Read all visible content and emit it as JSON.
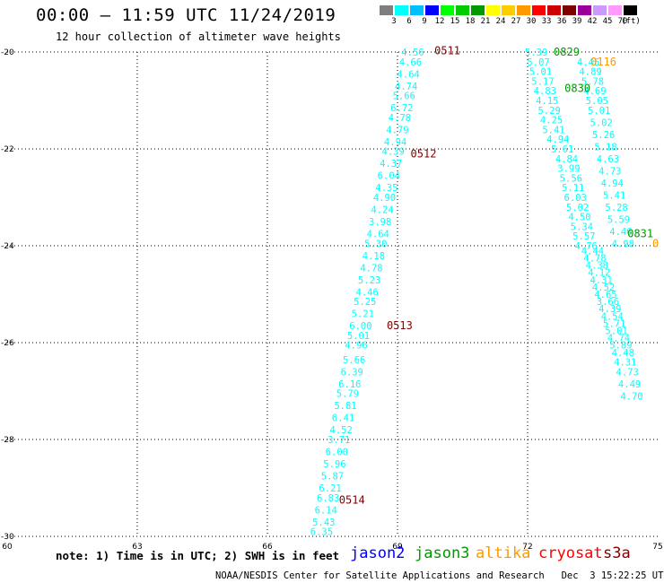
{
  "header": {
    "title": "00:00 – 11:59 UTC 11/24/2019",
    "subtitle": "12 hour collection of altimeter wave heights"
  },
  "color_scale": {
    "bins": [
      {
        "label": "3",
        "color": "#7f7f7f"
      },
      {
        "label": "6",
        "color": "#00ffff"
      },
      {
        "label": "9",
        "color": "#00bfff"
      },
      {
        "label": "12",
        "color": "#0000ff"
      },
      {
        "label": "15",
        "color": "#00ff00"
      },
      {
        "label": "18",
        "color": "#00cc00"
      },
      {
        "label": "21",
        "color": "#009900"
      },
      {
        "label": "24",
        "color": "#ffff00"
      },
      {
        "label": "27",
        "color": "#ffcc00"
      },
      {
        "label": "30",
        "color": "#ff9900"
      },
      {
        "label": "33",
        "color": "#ff0000"
      },
      {
        "label": "36",
        "color": "#cc0000"
      },
      {
        "label": "39",
        "color": "#800000"
      },
      {
        "label": "42",
        "color": "#990099"
      },
      {
        "label": "45",
        "color": "#cc99ff"
      },
      {
        "label": "70",
        "color": "#ff99ff"
      },
      {
        "label": "",
        "color": "#000000"
      }
    ],
    "unit": "(ft)"
  },
  "footer": {
    "note": "note: 1) Time is in UTC; 2) SWH is in feet",
    "satellites": [
      {
        "label": "jason2",
        "color": "#0000ff"
      },
      {
        "label": "jason3",
        "color": "#009900"
      },
      {
        "label": "altika",
        "color": "#ff9900"
      },
      {
        "label": "cryosat",
        "color": "#ff0000"
      },
      {
        "label": "s3a",
        "color": "#800000"
      }
    ],
    "credit": "NOAA/NESDIS Center for Satellite Applications and Research   Dec  3 15:22:25 UTC 2019"
  },
  "chart_data": {
    "type": "scatter",
    "xlim": [
      60,
      75
    ],
    "ylim": [
      -30,
      -20
    ],
    "x_ticks": [
      "60",
      "63",
      "66",
      "69",
      "72",
      "75"
    ],
    "y_ticks": [
      "-20",
      "-22",
      "-24",
      "-26",
      "-28",
      "-30"
    ],
    "grid": true,
    "track_a": {
      "color": "#00ffff",
      "points": [
        {
          "lon": 69.35,
          "lat": -20.0,
          "v": "4.56"
        },
        {
          "lon": 69.3,
          "lat": -20.2,
          "v": "4.66"
        },
        {
          "lon": 69.25,
          "lat": -20.45,
          "v": "4.64"
        },
        {
          "lon": 69.2,
          "lat": -20.7,
          "v": "4.74"
        },
        {
          "lon": 69.15,
          "lat": -20.9,
          "v": "5.66"
        },
        {
          "lon": 69.1,
          "lat": -21.15,
          "v": "6.72"
        },
        {
          "lon": 69.05,
          "lat": -21.35,
          "v": "4.78"
        },
        {
          "lon": 69.0,
          "lat": -21.6,
          "v": "4.79"
        },
        {
          "lon": 68.95,
          "lat": -21.85,
          "v": "4.94"
        },
        {
          "lon": 68.9,
          "lat": -22.05,
          "v": "4.39"
        },
        {
          "lon": 68.85,
          "lat": -22.3,
          "v": "4.37"
        },
        {
          "lon": 68.8,
          "lat": -22.55,
          "v": "6.04"
        },
        {
          "lon": 68.75,
          "lat": -22.8,
          "v": "4.35"
        },
        {
          "lon": 68.7,
          "lat": -23.0,
          "v": "4.90"
        },
        {
          "lon": 68.65,
          "lat": -23.25,
          "v": "4.24"
        },
        {
          "lon": 68.6,
          "lat": -23.5,
          "v": "3.98"
        },
        {
          "lon": 68.55,
          "lat": -23.75,
          "v": "4.64"
        },
        {
          "lon": 68.5,
          "lat": -23.95,
          "v": "5.30"
        },
        {
          "lon": 68.45,
          "lat": -24.2,
          "v": "4.18"
        },
        {
          "lon": 68.4,
          "lat": -24.45,
          "v": "4.78"
        },
        {
          "lon": 68.35,
          "lat": -24.7,
          "v": "5.23"
        },
        {
          "lon": 68.3,
          "lat": -24.95,
          "v": "4.46"
        },
        {
          "lon": 68.25,
          "lat": -25.15,
          "v": "5.25"
        },
        {
          "lon": 68.2,
          "lat": -25.4,
          "v": "5.21"
        },
        {
          "lon": 68.15,
          "lat": -25.65,
          "v": "6.00"
        },
        {
          "lon": 68.1,
          "lat": -25.85,
          "v": "5.01"
        },
        {
          "lon": 68.05,
          "lat": -26.05,
          "v": "4.96"
        },
        {
          "lon": 68.0,
          "lat": -26.35,
          "v": "5.66"
        },
        {
          "lon": 67.95,
          "lat": -26.6,
          "v": "6.39"
        },
        {
          "lon": 67.9,
          "lat": -26.85,
          "v": "6.16"
        },
        {
          "lon": 67.85,
          "lat": -27.05,
          "v": "5.79"
        },
        {
          "lon": 67.8,
          "lat": -27.3,
          "v": "5.81"
        },
        {
          "lon": 67.75,
          "lat": -27.55,
          "v": "6.41"
        },
        {
          "lon": 67.7,
          "lat": -27.8,
          "v": "4.52"
        },
        {
          "lon": 67.65,
          "lat": -28.0,
          "v": "3.71"
        },
        {
          "lon": 67.6,
          "lat": -28.25,
          "v": "6.00"
        },
        {
          "lon": 67.55,
          "lat": -28.5,
          "v": "5.96"
        },
        {
          "lon": 67.5,
          "lat": -28.75,
          "v": "5.87"
        },
        {
          "lon": 67.45,
          "lat": -29.0,
          "v": "6.21"
        },
        {
          "lon": 67.4,
          "lat": -29.2,
          "v": "6.83"
        },
        {
          "lon": 67.35,
          "lat": -29.45,
          "v": "6.14"
        },
        {
          "lon": 67.3,
          "lat": -29.7,
          "v": "5.43"
        },
        {
          "lon": 67.25,
          "lat": -29.9,
          "v": "6.35"
        }
      ],
      "time_labels": [
        {
          "lon": 70.15,
          "lat": -19.97,
          "t": "0511",
          "color": "#800000"
        },
        {
          "lon": 69.6,
          "lat": -22.1,
          "t": "0512",
          "color": "#800000"
        },
        {
          "lon": 69.05,
          "lat": -25.65,
          "t": "0513",
          "color": "#800000"
        },
        {
          "lon": 67.95,
          "lat": -29.25,
          "t": "0514",
          "color": "#800000"
        }
      ]
    },
    "track_b": {
      "color": "#00ffff",
      "points": [
        {
          "lon": 72.2,
          "lat": -20.0,
          "v": "5.39"
        },
        {
          "lon": 72.25,
          "lat": -20.2,
          "v": "5.07"
        },
        {
          "lon": 72.3,
          "lat": -20.4,
          "v": "5.01"
        },
        {
          "lon": 72.35,
          "lat": -20.6,
          "v": "5.17"
        },
        {
          "lon": 72.4,
          "lat": -20.8,
          "v": "4.83"
        },
        {
          "lon": 72.45,
          "lat": -21.0,
          "v": "4.15"
        },
        {
          "lon": 72.5,
          "lat": -21.2,
          "v": "5.29"
        },
        {
          "lon": 72.55,
          "lat": -21.4,
          "v": "4.25"
        },
        {
          "lon": 72.6,
          "lat": -21.6,
          "v": "5.41"
        },
        {
          "lon": 72.7,
          "lat": -21.8,
          "v": "4.94"
        },
        {
          "lon": 72.8,
          "lat": -22.0,
          "v": "5.61"
        },
        {
          "lon": 72.9,
          "lat": -22.2,
          "v": "4.84"
        },
        {
          "lon": 72.95,
          "lat": -22.4,
          "v": "3.99"
        },
        {
          "lon": 73.0,
          "lat": -22.6,
          "v": "5.56"
        },
        {
          "lon": 73.05,
          "lat": -22.8,
          "v": "5.11"
        },
        {
          "lon": 73.1,
          "lat": -23.0,
          "v": "6.03"
        },
        {
          "lon": 73.15,
          "lat": -23.2,
          "v": "5.02"
        },
        {
          "lon": 73.2,
          "lat": -23.4,
          "v": "4.50"
        },
        {
          "lon": 73.25,
          "lat": -23.6,
          "v": "5.34"
        },
        {
          "lon": 73.3,
          "lat": -23.8,
          "v": "5.57"
        },
        {
          "lon": 73.35,
          "lat": -24.0,
          "v": "4.76"
        }
      ]
    },
    "track_c": {
      "color": "#00ffff",
      "points": [
        {
          "lon": 73.4,
          "lat": -20.2,
          "v": "4.45"
        },
        {
          "lon": 73.45,
          "lat": -20.4,
          "v": "4.89"
        },
        {
          "lon": 73.5,
          "lat": -20.6,
          "v": "5.78"
        },
        {
          "lon": 73.55,
          "lat": -20.8,
          "v": "4.69"
        },
        {
          "lon": 73.6,
          "lat": -21.0,
          "v": "5.05"
        },
        {
          "lon": 73.65,
          "lat": -21.2,
          "v": "5.01"
        },
        {
          "lon": 73.7,
          "lat": -21.45,
          "v": "5.02"
        },
        {
          "lon": 73.75,
          "lat": -21.7,
          "v": "5.26"
        },
        {
          "lon": 73.8,
          "lat": -21.95,
          "v": "5.18"
        },
        {
          "lon": 73.85,
          "lat": -22.2,
          "v": "4.63"
        },
        {
          "lon": 73.9,
          "lat": -22.45,
          "v": "4.73"
        },
        {
          "lon": 73.95,
          "lat": -22.7,
          "v": "4.94"
        },
        {
          "lon": 74.0,
          "lat": -22.95,
          "v": "5.41"
        },
        {
          "lon": 74.05,
          "lat": -23.2,
          "v": "5.28"
        },
        {
          "lon": 74.1,
          "lat": -23.45,
          "v": "5.59"
        },
        {
          "lon": 74.15,
          "lat": -23.7,
          "v": "4.46"
        },
        {
          "lon": 74.2,
          "lat": -23.95,
          "v": "4.98"
        }
      ],
      "time_labels": [
        {
          "lon": 72.9,
          "lat": -20.0,
          "t": "0829",
          "color": "#009900"
        },
        {
          "lon": 73.15,
          "lat": -20.75,
          "t": "0830",
          "color": "#009900"
        },
        {
          "lon": 74.6,
          "lat": -23.75,
          "t": "0831",
          "color": "#009900"
        },
        {
          "lon": 73.75,
          "lat": -20.2,
          "t": "0116",
          "color": "#ff9900"
        },
        {
          "lon": 74.95,
          "lat": -23.95,
          "t": "0",
          "color": "#ff9900"
        }
      ]
    },
    "track_d": {
      "color": "#00ffff",
      "points": [
        {
          "lon": 73.5,
          "lat": -24.1,
          "v": "4.44"
        },
        {
          "lon": 73.55,
          "lat": -24.25,
          "v": "4.78"
        },
        {
          "lon": 73.6,
          "lat": -24.4,
          "v": "4.38"
        },
        {
          "lon": 73.65,
          "lat": -24.55,
          "v": "4.12"
        },
        {
          "lon": 73.7,
          "lat": -24.7,
          "v": "4.31"
        },
        {
          "lon": 73.75,
          "lat": -24.85,
          "v": "4.52"
        },
        {
          "lon": 73.8,
          "lat": -25.0,
          "v": "4.65"
        },
        {
          "lon": 73.85,
          "lat": -25.15,
          "v": "3.66"
        },
        {
          "lon": 73.9,
          "lat": -25.3,
          "v": "4.39"
        },
        {
          "lon": 73.95,
          "lat": -25.45,
          "v": "4.54"
        },
        {
          "lon": 74.0,
          "lat": -25.6,
          "v": "5.71"
        },
        {
          "lon": 74.05,
          "lat": -25.75,
          "v": "5.01"
        },
        {
          "lon": 74.1,
          "lat": -25.9,
          "v": "4.74"
        },
        {
          "lon": 74.15,
          "lat": -26.05,
          "v": "5.89"
        },
        {
          "lon": 74.2,
          "lat": -26.2,
          "v": "4.48"
        },
        {
          "lon": 74.25,
          "lat": -26.4,
          "v": "4.31"
        },
        {
          "lon": 74.3,
          "lat": -26.6,
          "v": "4.73"
        },
        {
          "lon": 74.35,
          "lat": -26.85,
          "v": "4.49"
        },
        {
          "lon": 74.4,
          "lat": -27.1,
          "v": "4.70"
        }
      ]
    }
  }
}
